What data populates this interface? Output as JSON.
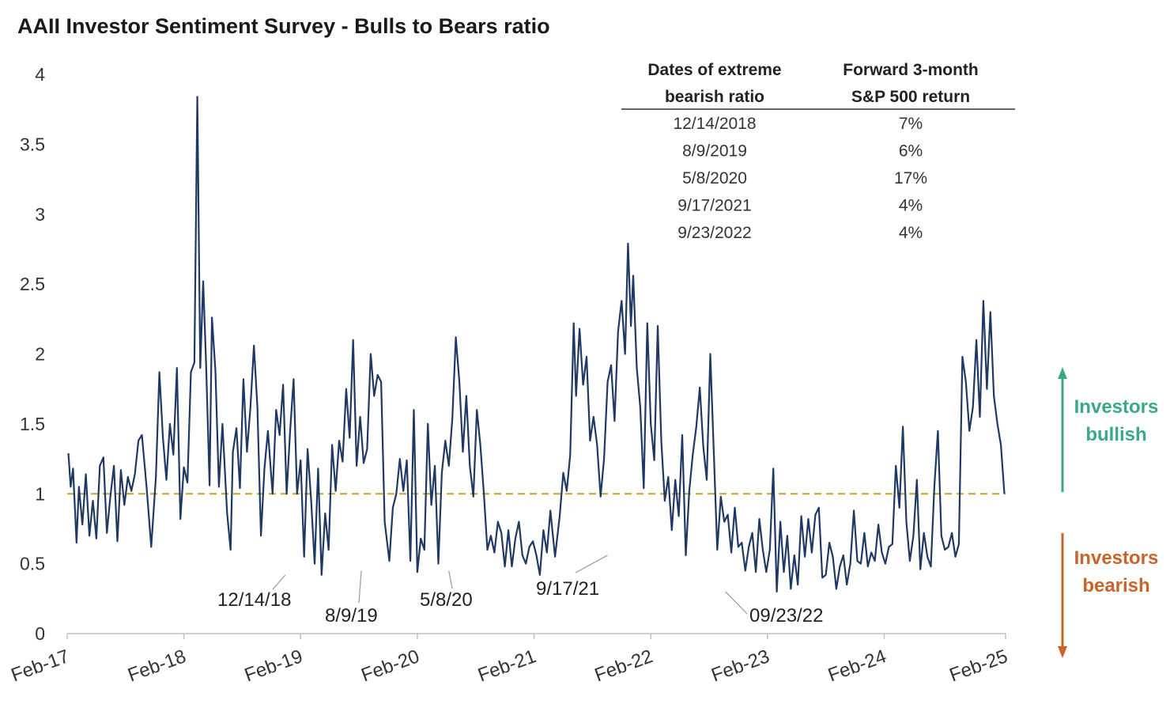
{
  "chart_data": {
    "type": "line",
    "title": "AAII Investor Sentiment Survey - Bulls to Bears ratio",
    "xlabel": "",
    "ylabel": "",
    "ylim": [
      0,
      4
    ],
    "yticks": [
      "0",
      "0.5",
      "1",
      "1.5",
      "2",
      "2.5",
      "3",
      "3.5",
      "4"
    ],
    "xticks": [
      "Feb-17",
      "Feb-18",
      "Feb-19",
      "Feb-20",
      "Feb-21",
      "Feb-22",
      "Feb-23",
      "Feb-24",
      "Feb-25"
    ],
    "x_range_years": [
      2017.08,
      2025.12
    ],
    "reference_line": {
      "y": 1,
      "style": "dashed",
      "color": "#c9a227"
    },
    "series": [
      {
        "color": "#1f3864",
        "points": [
          [
            2017.09,
            1.29
          ],
          [
            2017.11,
            1.05
          ],
          [
            2017.13,
            1.18
          ],
          [
            2017.16,
            0.65
          ],
          [
            2017.18,
            1.05
          ],
          [
            2017.21,
            0.78
          ],
          [
            2017.24,
            1.14
          ],
          [
            2017.27,
            0.7
          ],
          [
            2017.3,
            0.95
          ],
          [
            2017.33,
            0.68
          ],
          [
            2017.36,
            1.2
          ],
          [
            2017.39,
            1.26
          ],
          [
            2017.42,
            0.72
          ],
          [
            2017.45,
            0.98
          ],
          [
            2017.48,
            1.2
          ],
          [
            2017.51,
            0.66
          ],
          [
            2017.54,
            1.17
          ],
          [
            2017.57,
            0.92
          ],
          [
            2017.6,
            1.12
          ],
          [
            2017.63,
            1.02
          ],
          [
            2017.66,
            1.14
          ],
          [
            2017.69,
            1.38
          ],
          [
            2017.72,
            1.42
          ],
          [
            2017.76,
            1.05
          ],
          [
            2017.8,
            0.62
          ],
          [
            2017.84,
            1.12
          ],
          [
            2017.87,
            1.87
          ],
          [
            2017.9,
            1.4
          ],
          [
            2017.93,
            1.1
          ],
          [
            2017.96,
            1.5
          ],
          [
            2017.99,
            1.28
          ],
          [
            2018.02,
            1.9
          ],
          [
            2018.05,
            0.82
          ],
          [
            2018.08,
            1.19
          ],
          [
            2018.11,
            1.08
          ],
          [
            2018.14,
            1.87
          ],
          [
            2018.17,
            1.94
          ],
          [
            2018.195,
            3.84
          ],
          [
            2018.22,
            1.9
          ],
          [
            2018.245,
            2.52
          ],
          [
            2018.27,
            1.93
          ],
          [
            2018.3,
            1.06
          ],
          [
            2018.32,
            2.26
          ],
          [
            2018.35,
            1.88
          ],
          [
            2018.38,
            1.05
          ],
          [
            2018.41,
            1.5
          ],
          [
            2018.45,
            0.86
          ],
          [
            2018.48,
            0.6
          ],
          [
            2018.5,
            1.3
          ],
          [
            2018.53,
            1.47
          ],
          [
            2018.56,
            1.04
          ],
          [
            2018.59,
            1.82
          ],
          [
            2018.62,
            1.3
          ],
          [
            2018.65,
            1.62
          ],
          [
            2018.68,
            2.06
          ],
          [
            2018.71,
            1.62
          ],
          [
            2018.74,
            0.7
          ],
          [
            2018.77,
            1.18
          ],
          [
            2018.8,
            1.45
          ],
          [
            2018.84,
            1.0
          ],
          [
            2018.87,
            1.6
          ],
          [
            2018.9,
            1.42
          ],
          [
            2018.93,
            1.78
          ],
          [
            2018.96,
            1.0
          ],
          [
            2018.99,
            1.45
          ],
          [
            2019.02,
            1.82
          ],
          [
            2019.05,
            1.0
          ],
          [
            2019.08,
            1.24
          ],
          [
            2019.11,
            0.55
          ],
          [
            2019.14,
            1.32
          ],
          [
            2019.17,
            0.95
          ],
          [
            2019.2,
            0.5
          ],
          [
            2019.23,
            1.18
          ],
          [
            2019.26,
            0.42
          ],
          [
            2019.29,
            0.86
          ],
          [
            2019.32,
            0.6
          ],
          [
            2019.35,
            1.35
          ],
          [
            2019.38,
            1.02
          ],
          [
            2019.41,
            1.38
          ],
          [
            2019.44,
            1.23
          ],
          [
            2019.47,
            1.75
          ],
          [
            2019.5,
            1.4
          ],
          [
            2019.53,
            2.1
          ],
          [
            2019.56,
            1.2
          ],
          [
            2019.59,
            1.55
          ],
          [
            2019.62,
            1.22
          ],
          [
            2019.65,
            1.32
          ],
          [
            2019.68,
            2.0
          ],
          [
            2019.71,
            1.7
          ],
          [
            2019.74,
            1.85
          ],
          [
            2019.77,
            1.8
          ],
          [
            2019.8,
            0.8
          ],
          [
            2019.84,
            0.52
          ],
          [
            2019.87,
            0.9
          ],
          [
            2019.9,
            1.0
          ],
          [
            2019.93,
            1.25
          ],
          [
            2019.96,
            1.02
          ],
          [
            2019.99,
            1.24
          ],
          [
            2020.02,
            0.52
          ],
          [
            2020.05,
            1.6
          ],
          [
            2020.08,
            0.44
          ],
          [
            2020.11,
            0.68
          ],
          [
            2020.14,
            0.6
          ],
          [
            2020.17,
            1.5
          ],
          [
            2020.2,
            0.92
          ],
          [
            2020.23,
            1.2
          ],
          [
            2020.26,
            0.5
          ],
          [
            2020.29,
            1.15
          ],
          [
            2020.32,
            1.38
          ],
          [
            2020.35,
            1.2
          ],
          [
            2020.38,
            1.54
          ],
          [
            2020.41,
            2.12
          ],
          [
            2020.44,
            1.8
          ],
          [
            2020.47,
            1.3
          ],
          [
            2020.5,
            1.7
          ],
          [
            2020.53,
            1.2
          ],
          [
            2020.56,
            0.98
          ],
          [
            2020.59,
            1.6
          ],
          [
            2020.62,
            1.35
          ],
          [
            2020.65,
            1.0
          ],
          [
            2020.68,
            0.6
          ],
          [
            2020.71,
            0.7
          ],
          [
            2020.74,
            0.58
          ],
          [
            2020.77,
            0.8
          ],
          [
            2020.8,
            0.72
          ],
          [
            2020.83,
            0.48
          ],
          [
            2020.86,
            0.74
          ],
          [
            2020.89,
            0.48
          ],
          [
            2020.92,
            0.68
          ],
          [
            2020.95,
            0.8
          ],
          [
            2020.98,
            0.56
          ],
          [
            2021.01,
            0.5
          ],
          [
            2021.04,
            0.62
          ],
          [
            2021.07,
            0.66
          ],
          [
            2021.1,
            0.56
          ],
          [
            2021.13,
            0.42
          ],
          [
            2021.16,
            0.74
          ],
          [
            2021.19,
            0.58
          ],
          [
            2021.22,
            0.88
          ],
          [
            2021.26,
            0.55
          ],
          [
            2021.3,
            0.84
          ],
          [
            2021.33,
            1.15
          ],
          [
            2021.36,
            1.02
          ],
          [
            2021.39,
            1.28
          ],
          [
            2021.42,
            2.22
          ],
          [
            2021.44,
            1.7
          ],
          [
            2021.47,
            2.18
          ],
          [
            2021.5,
            1.78
          ],
          [
            2021.53,
            1.98
          ],
          [
            2021.56,
            1.38
          ],
          [
            2021.59,
            1.55
          ],
          [
            2021.62,
            1.35
          ],
          [
            2021.65,
            0.98
          ],
          [
            2021.68,
            1.25
          ],
          [
            2021.71,
            1.8
          ],
          [
            2021.74,
            1.92
          ],
          [
            2021.77,
            1.52
          ],
          [
            2021.8,
            2.16
          ],
          [
            2021.83,
            2.38
          ],
          [
            2021.86,
            2.0
          ],
          [
            2021.885,
            2.79
          ],
          [
            2021.91,
            2.2
          ],
          [
            2021.93,
            2.56
          ],
          [
            2021.96,
            1.9
          ],
          [
            2021.99,
            1.62
          ],
          [
            2022.02,
            1.04
          ],
          [
            2022.05,
            2.22
          ],
          [
            2022.08,
            1.5
          ],
          [
            2022.11,
            1.24
          ],
          [
            2022.14,
            2.2
          ],
          [
            2022.17,
            1.38
          ],
          [
            2022.2,
            0.95
          ],
          [
            2022.23,
            1.12
          ],
          [
            2022.26,
            0.74
          ],
          [
            2022.29,
            1.1
          ],
          [
            2022.32,
            0.84
          ],
          [
            2022.35,
            1.42
          ],
          [
            2022.38,
            0.56
          ],
          [
            2022.41,
            1.02
          ],
          [
            2022.44,
            1.28
          ],
          [
            2022.47,
            1.48
          ],
          [
            2022.5,
            1.76
          ],
          [
            2022.53,
            1.34
          ],
          [
            2022.56,
            1.1
          ],
          [
            2022.59,
            2.0
          ],
          [
            2022.62,
            1.3
          ],
          [
            2022.65,
            0.6
          ],
          [
            2022.68,
            0.98
          ],
          [
            2022.71,
            0.8
          ],
          [
            2022.74,
            0.85
          ],
          [
            2022.77,
            0.58
          ],
          [
            2022.8,
            0.9
          ],
          [
            2022.83,
            0.62
          ],
          [
            2022.86,
            0.65
          ],
          [
            2022.89,
            0.45
          ],
          [
            2022.92,
            0.62
          ],
          [
            2022.95,
            0.72
          ],
          [
            2022.98,
            0.44
          ],
          [
            2023.01,
            0.82
          ],
          [
            2023.04,
            0.6
          ],
          [
            2023.07,
            0.44
          ],
          [
            2023.1,
            0.6
          ],
          [
            2023.13,
            1.18
          ],
          [
            2023.16,
            0.3
          ],
          [
            2023.19,
            0.8
          ],
          [
            2023.22,
            0.44
          ],
          [
            2023.25,
            0.7
          ],
          [
            2023.28,
            0.32
          ],
          [
            2023.31,
            0.56
          ],
          [
            2023.34,
            0.35
          ],
          [
            2023.37,
            0.84
          ],
          [
            2023.4,
            0.55
          ],
          [
            2023.43,
            0.82
          ],
          [
            2023.46,
            0.58
          ],
          [
            2023.49,
            0.85
          ],
          [
            2023.52,
            0.9
          ],
          [
            2023.55,
            0.4
          ],
          [
            2023.58,
            0.42
          ],
          [
            2023.61,
            0.65
          ],
          [
            2023.64,
            0.55
          ],
          [
            2023.67,
            0.32
          ],
          [
            2023.7,
            0.48
          ],
          [
            2023.73,
            0.56
          ],
          [
            2023.76,
            0.35
          ],
          [
            2023.79,
            0.5
          ],
          [
            2023.82,
            0.88
          ],
          [
            2023.85,
            0.52
          ],
          [
            2023.88,
            0.5
          ],
          [
            2023.91,
            0.72
          ],
          [
            2023.94,
            0.48
          ],
          [
            2023.97,
            0.58
          ],
          [
            2024.0,
            0.52
          ],
          [
            2024.03,
            0.78
          ],
          [
            2024.06,
            0.58
          ],
          [
            2024.09,
            0.5
          ],
          [
            2024.12,
            0.62
          ],
          [
            2024.15,
            0.64
          ],
          [
            2024.18,
            1.2
          ],
          [
            2024.21,
            0.9
          ],
          [
            2024.24,
            1.48
          ],
          [
            2024.27,
            0.8
          ],
          [
            2024.3,
            0.52
          ],
          [
            2024.33,
            0.7
          ],
          [
            2024.36,
            1.1
          ],
          [
            2024.39,
            0.46
          ],
          [
            2024.42,
            0.72
          ],
          [
            2024.45,
            0.55
          ],
          [
            2024.48,
            0.48
          ],
          [
            2024.51,
            1.05
          ],
          [
            2024.54,
            1.45
          ],
          [
            2024.57,
            0.7
          ],
          [
            2024.6,
            0.6
          ],
          [
            2024.63,
            0.62
          ],
          [
            2024.66,
            0.72
          ],
          [
            2024.69,
            0.55
          ],
          [
            2024.72,
            0.64
          ],
          [
            2024.75,
            1.98
          ],
          [
            2024.78,
            1.8
          ],
          [
            2024.81,
            1.45
          ],
          [
            2024.84,
            1.62
          ],
          [
            2024.87,
            2.1
          ],
          [
            2024.9,
            1.55
          ],
          [
            2024.93,
            2.38
          ],
          [
            2024.96,
            1.75
          ],
          [
            2024.99,
            2.3
          ],
          [
            2025.02,
            1.7
          ],
          [
            2025.05,
            1.5
          ],
          [
            2025.08,
            1.35
          ],
          [
            2025.11,
            1.0
          ]
        ]
      }
    ],
    "annotations": [
      {
        "label": "12/14/18",
        "x": 2018.95,
        "y": 0.42
      },
      {
        "label": "8/9/19",
        "x": 2019.6,
        "y": 0.45
      },
      {
        "label": "5/8/20",
        "x": 2020.35,
        "y": 0.45
      },
      {
        "label": "9/17/21",
        "x": 2021.71,
        "y": 0.56
      },
      {
        "label": "09/23/22",
        "x": 2022.72,
        "y": 0.3
      }
    ],
    "table": {
      "headers": [
        [
          "Dates of extreme",
          "bearish ratio"
        ],
        [
          "Forward 3-month",
          "S&P 500 return"
        ]
      ],
      "rows": [
        [
          "12/14/2018",
          "7%"
        ],
        [
          "8/9/2019",
          "6%"
        ],
        [
          "5/8/2020",
          "17%"
        ],
        [
          "9/17/2021",
          "4%"
        ],
        [
          "9/23/2022",
          "4%"
        ]
      ]
    },
    "side_labels": {
      "bullish": [
        "Investors",
        "bullish"
      ],
      "bearish": [
        "Investors",
        "bearish"
      ],
      "bullish_color": "#3aa98a",
      "bearish_color": "#c8642a"
    }
  }
}
